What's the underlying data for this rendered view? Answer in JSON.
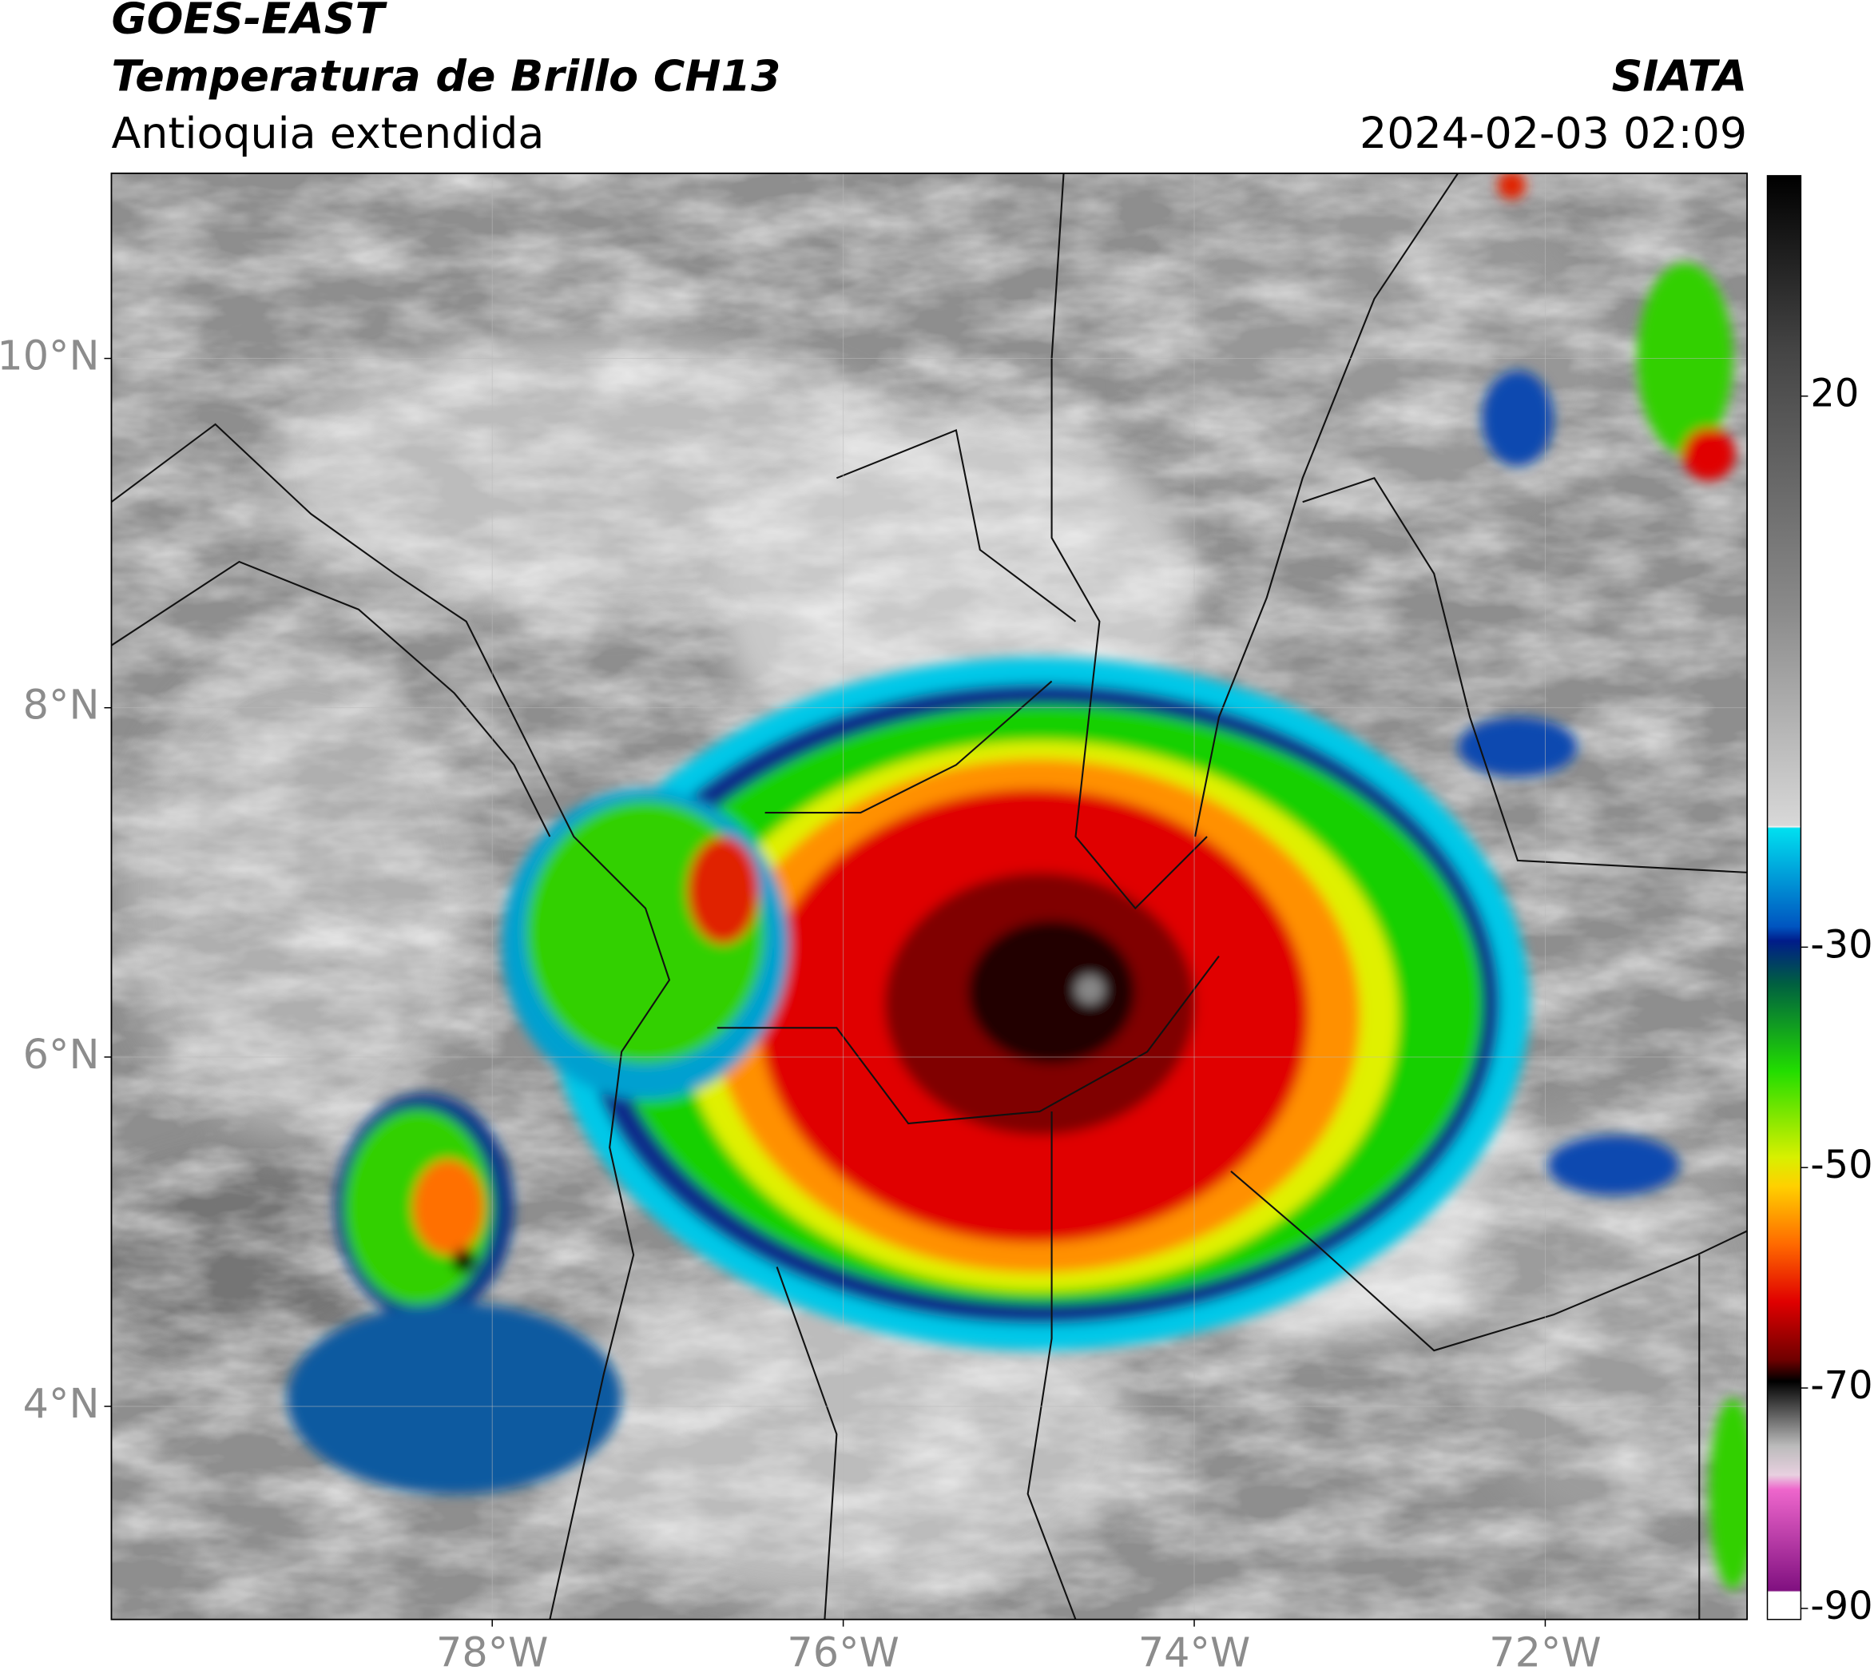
{
  "map": {
    "title": "GOES-EAST",
    "subtitle": "Temperatura de Brillo CH13",
    "region": "Antioquia extendida",
    "source": "SIATA",
    "datetime": "2024-02-03 02:09",
    "xlim": [
      -80.17,
      -70.85
    ],
    "ylim": [
      2.78,
      11.06
    ],
    "xticks": [
      {
        "value": -78,
        "label": "78°W"
      },
      {
        "value": -76,
        "label": "76°W"
      },
      {
        "value": -74,
        "label": "74°W"
      },
      {
        "value": -72,
        "label": "72°W"
      }
    ],
    "yticks": [
      {
        "value": 4,
        "label": "4°N"
      },
      {
        "value": 6,
        "label": "6°N"
      },
      {
        "value": 8,
        "label": "8°N"
      },
      {
        "value": 10,
        "label": "10°N"
      }
    ],
    "colorbar": {
      "lim": [
        -91,
        40
      ],
      "ticks": [
        20,
        -30,
        -50,
        -70,
        -90
      ]
    }
  }
}
